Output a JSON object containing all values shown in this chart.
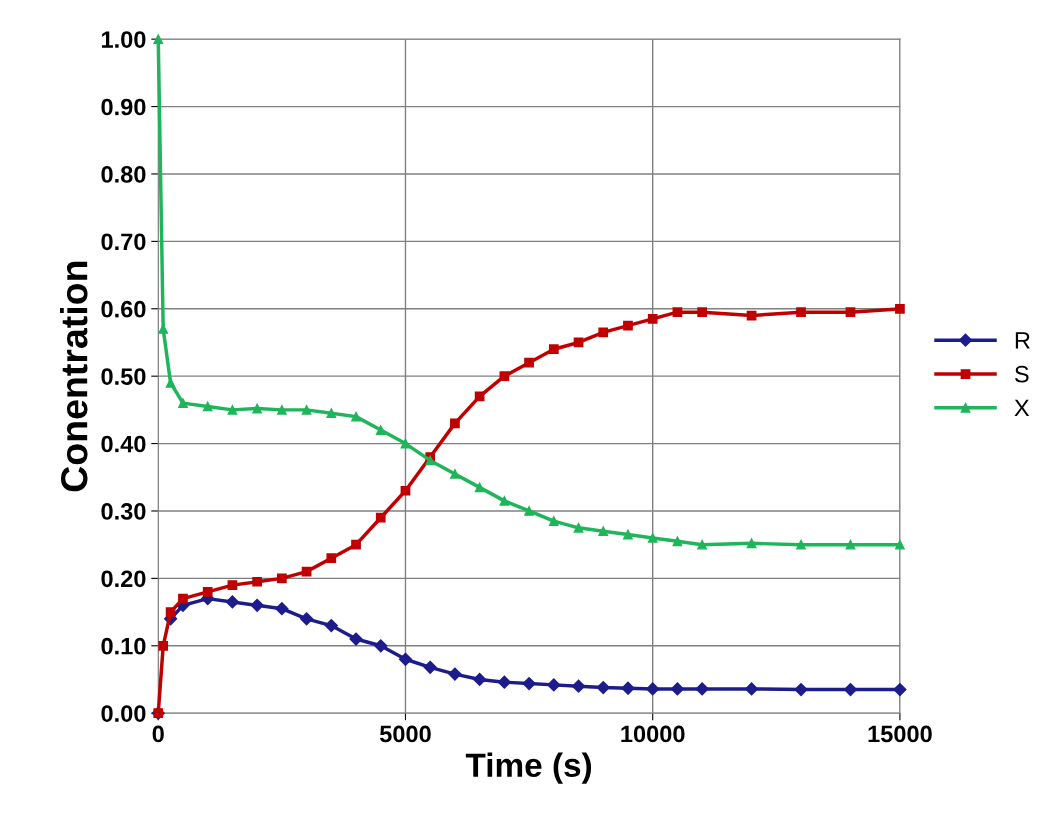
{
  "chart_data": {
    "type": "line",
    "xlabel": "Time (s)",
    "ylabel": "Conentration",
    "x": [
      0,
      100,
      250,
      500,
      1000,
      1500,
      2000,
      2500,
      3000,
      3500,
      4000,
      4500,
      5000,
      5500,
      6000,
      6500,
      7000,
      7500,
      8000,
      8500,
      9000,
      9500,
      10000,
      10500,
      11000,
      12000,
      13000,
      14000,
      15000
    ],
    "series": [
      {
        "name": "R",
        "color": "#1c1c8c",
        "marker": "diamond",
        "values": [
          0,
          null,
          0.14,
          0.16,
          0.17,
          0.165,
          0.16,
          0.155,
          0.14,
          0.13,
          0.11,
          0.1,
          0.08,
          0.068,
          0.058,
          0.05,
          0.046,
          0.044,
          0.042,
          0.04,
          0.038,
          0.037,
          0.036,
          0.036,
          0.036,
          0.036,
          0.035,
          0.035,
          0.035
        ]
      },
      {
        "name": "S",
        "color": "#c00000",
        "marker": "square",
        "values": [
          0,
          0.1,
          0.15,
          0.17,
          0.18,
          0.19,
          0.195,
          0.2,
          0.21,
          0.23,
          0.25,
          0.29,
          0.33,
          0.38,
          0.43,
          0.47,
          0.5,
          0.52,
          0.54,
          0.55,
          0.565,
          0.575,
          0.585,
          0.595,
          0.595,
          0.59,
          0.595,
          0.595,
          0.6
        ]
      },
      {
        "name": "X",
        "color": "#1fb55a",
        "marker": "triangle",
        "values": [
          1.0,
          0.57,
          0.49,
          0.46,
          0.455,
          0.45,
          0.452,
          0.45,
          0.45,
          0.445,
          0.44,
          0.42,
          0.4,
          0.375,
          0.355,
          0.335,
          0.315,
          0.3,
          0.285,
          0.275,
          0.27,
          0.265,
          0.26,
          0.255,
          0.25,
          0.252,
          0.25,
          0.25,
          0.25
        ]
      }
    ],
    "xlim": [
      0,
      15000
    ],
    "xticks": [
      0,
      5000,
      10000,
      15000
    ],
    "ylim": [
      0,
      1
    ],
    "yticks": [
      {
        "value": 0,
        "label": "0.00"
      },
      {
        "value": 0.1,
        "label": "0.10"
      },
      {
        "value": 0.2,
        "label": "0.20"
      },
      {
        "value": 0.3,
        "label": "0.30"
      },
      {
        "value": 0.4,
        "label": "0.40"
      },
      {
        "value": 0.5,
        "label": "0.50"
      },
      {
        "value": 0.6,
        "label": "0.60"
      },
      {
        "value": 0.7,
        "label": "0.70"
      },
      {
        "value": 0.8,
        "label": "0.80"
      },
      {
        "value": 0.9,
        "label": "0.90"
      },
      {
        "value": 1,
        "label": "1.00"
      }
    ],
    "grid": true,
    "legend": "right"
  }
}
